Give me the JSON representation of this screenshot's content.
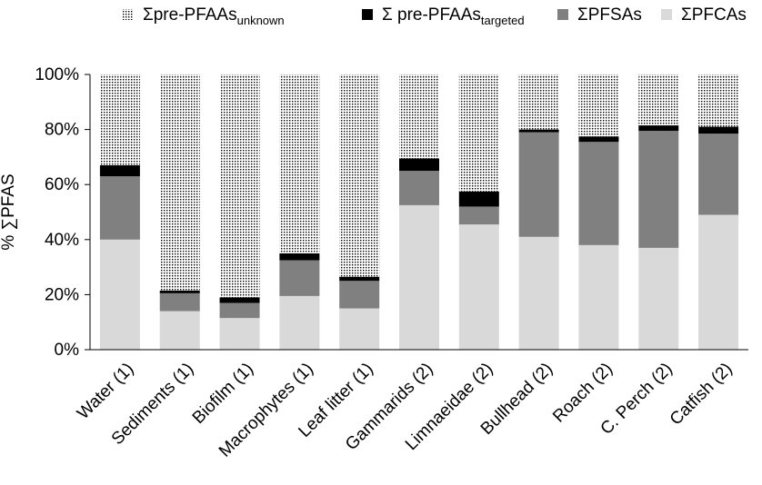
{
  "chart_data": {
    "type": "bar",
    "stacked": true,
    "percent": true,
    "categories": [
      "Water (1)",
      "Sediments (1)",
      "Biofilm (1)",
      "Macrophytes (1)",
      "Leaf litter (1)",
      "Gammarids (2)",
      "Limnaeidae (2)",
      "Bullhead (2)",
      "Roach (2)",
      "C. Perch (2)",
      "Catfish (2)"
    ],
    "ylabel": "% ∑PFAS",
    "ylim": [
      0,
      100
    ],
    "yticks": [
      "0%",
      "20%",
      "40%",
      "60%",
      "80%",
      "100%"
    ],
    "grid": false,
    "legend_position": "top",
    "series": [
      {
        "key": "pfcas",
        "color": "#d9d9d9",
        "pattern": "solid",
        "values": [
          40,
          14,
          11.5,
          19.5,
          15,
          52.5,
          45.5,
          41,
          38,
          37,
          49
        ]
      },
      {
        "key": "pfsas",
        "color": "#808080",
        "pattern": "solid",
        "values": [
          23,
          6.5,
          5.5,
          13,
          10,
          12.5,
          6.5,
          38,
          37.5,
          42.5,
          29.5
        ]
      },
      {
        "key": "pre_targeted",
        "color": "#000000",
        "pattern": "solid",
        "values": [
          4,
          1,
          2,
          2.5,
          1.5,
          4.5,
          5.5,
          1,
          2,
          2,
          2.5
        ]
      },
      {
        "key": "pre_unknown",
        "color": "#ffffff",
        "pattern": "dots",
        "values": [
          33,
          78.5,
          81,
          65,
          73.5,
          30.5,
          42.5,
          20,
          22.5,
          18.5,
          19
        ]
      }
    ],
    "legend": [
      {
        "series": "pre_unknown",
        "main": "Σpre-PFAAs",
        "sub": "unknown"
      },
      {
        "series": "pre_targeted",
        "main": "Σ pre-PFAAs",
        "sub": "targeted"
      },
      {
        "series": "pfsas",
        "main": "ΣPFSAs",
        "sub": ""
      },
      {
        "series": "pfcas",
        "main": "ΣPFCAs",
        "sub": ""
      }
    ]
  }
}
